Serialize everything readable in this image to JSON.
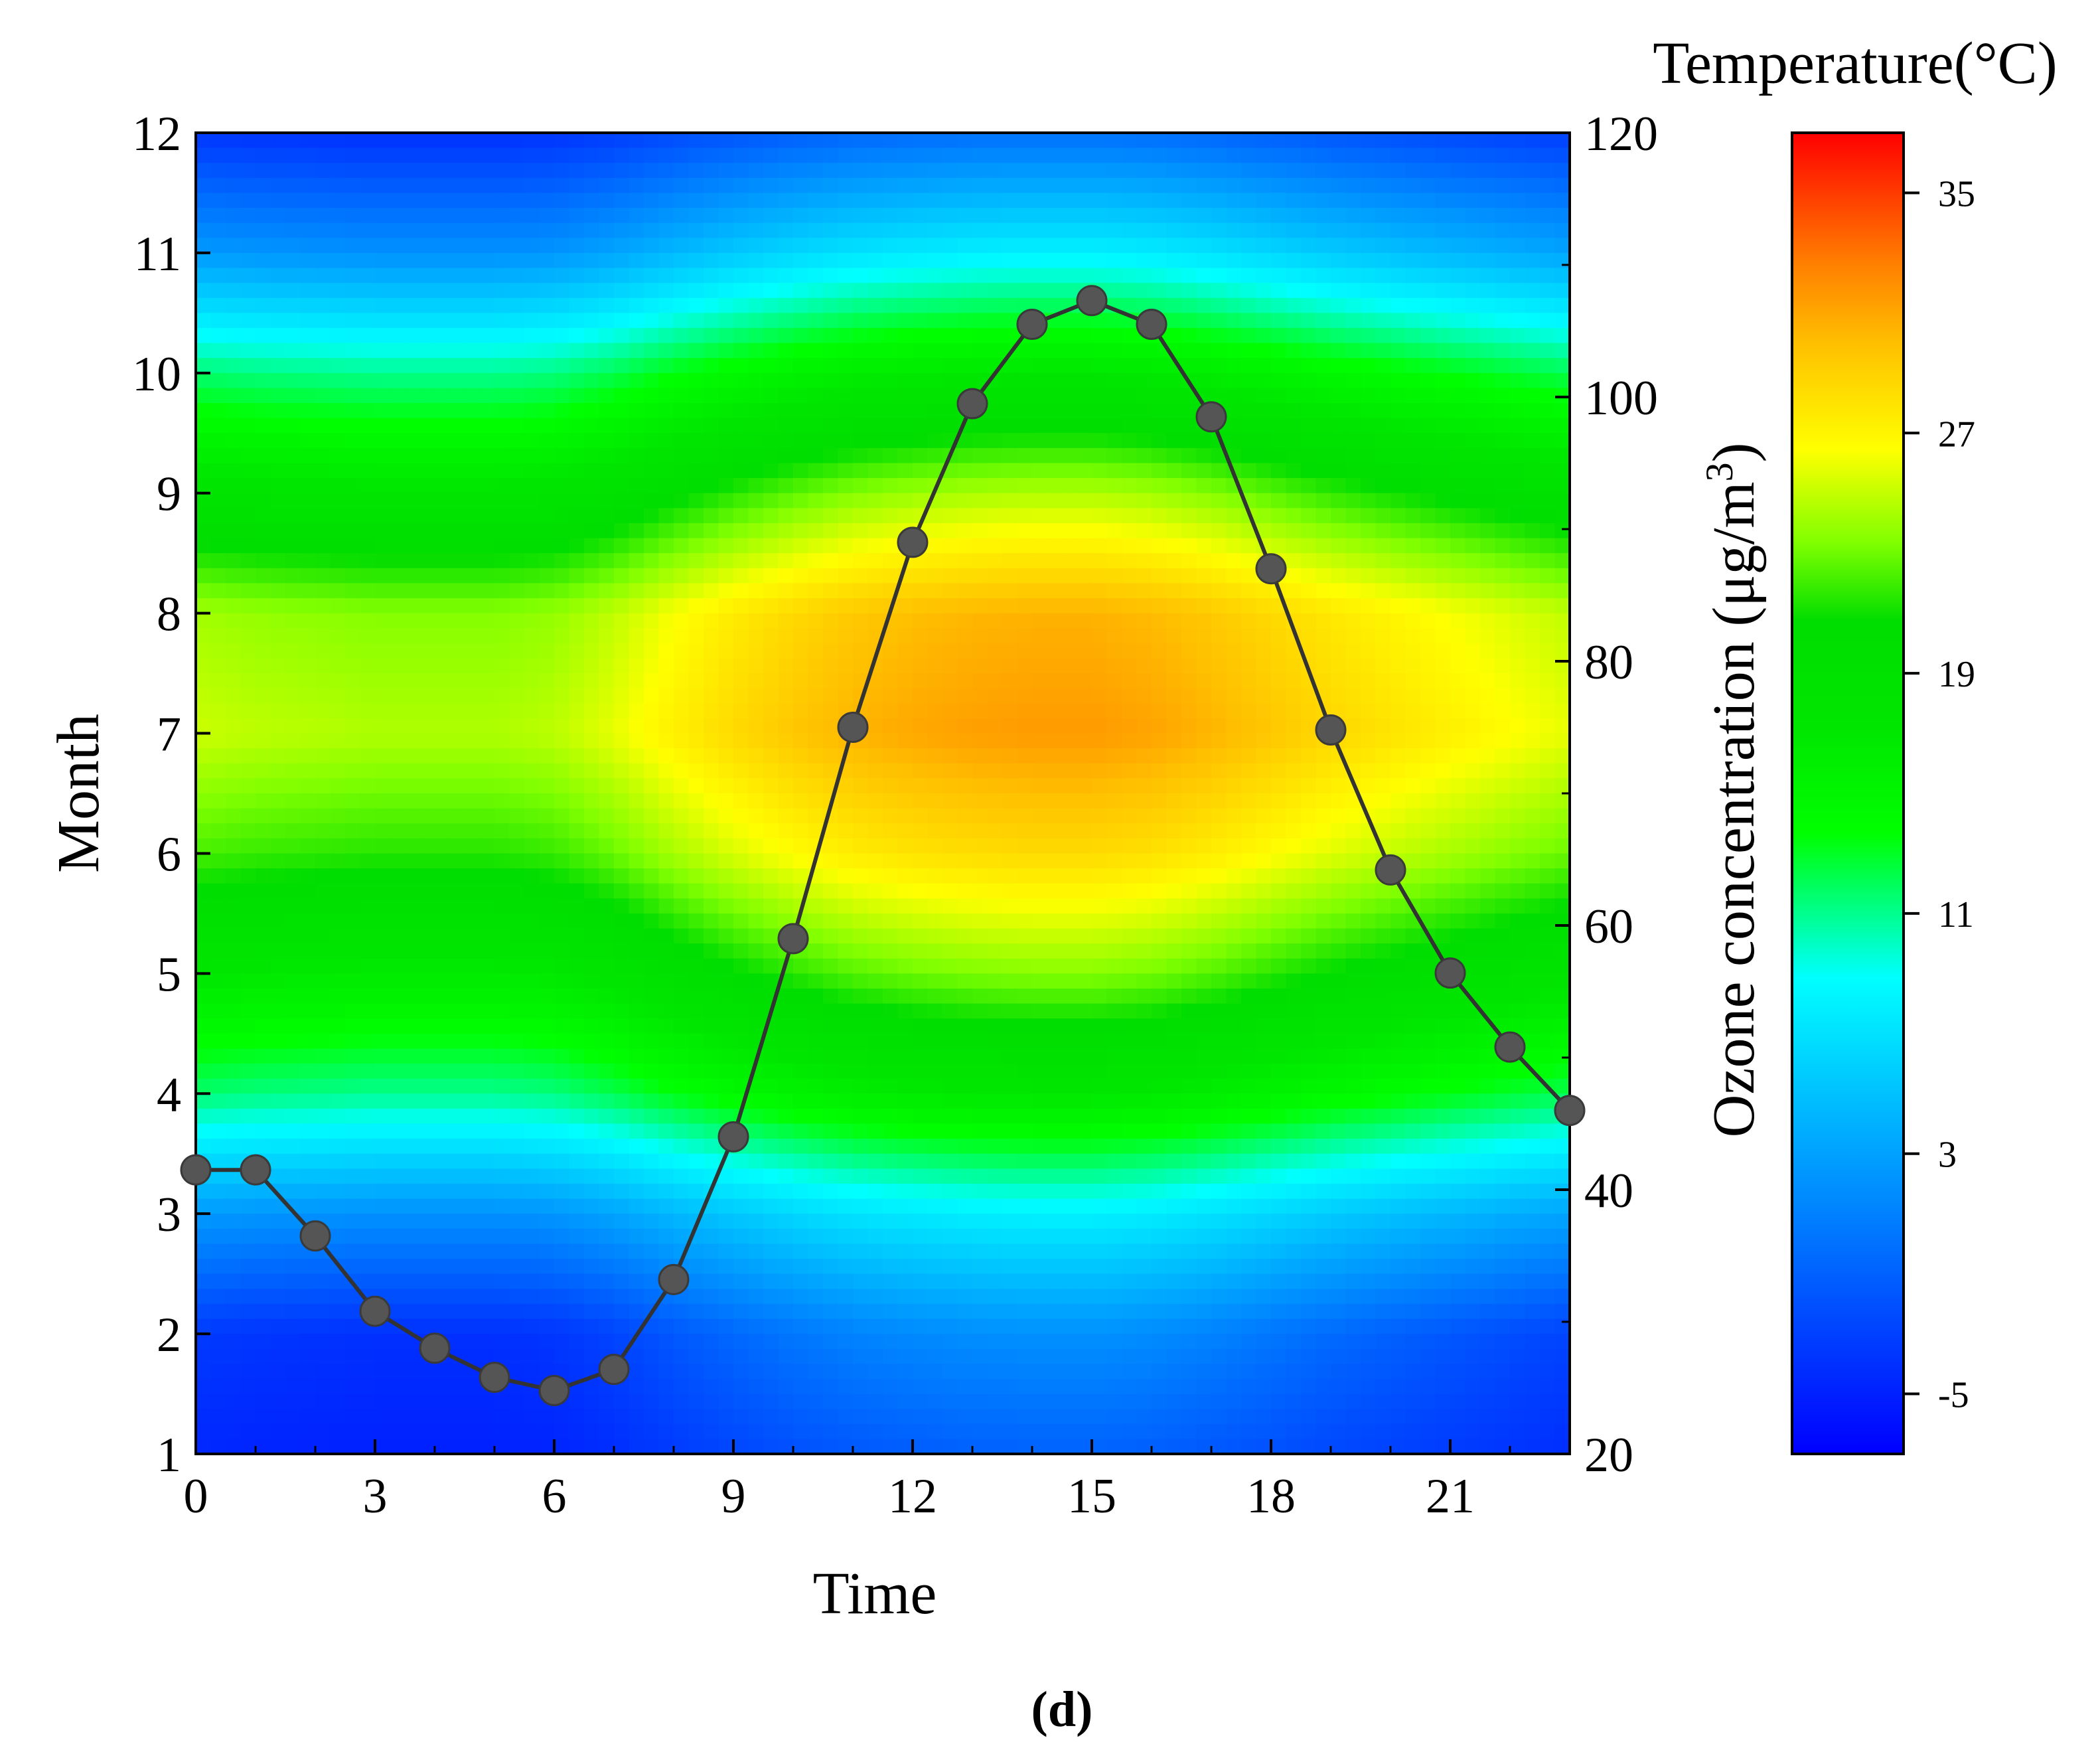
{
  "chart_data": {
    "type": "heatmap",
    "panel_label": "(d)",
    "x_axis": {
      "label": "Time",
      "range": [
        0,
        23
      ],
      "ticks": [
        0,
        3,
        6,
        9,
        12,
        15,
        18,
        21
      ],
      "tick_labels": [
        "0",
        "3",
        "6",
        "9",
        "12",
        "15",
        "18",
        "21"
      ]
    },
    "y_axis_left": {
      "label": "Month",
      "range": [
        1,
        12
      ],
      "ticks": [
        1,
        2,
        3,
        4,
        5,
        6,
        7,
        8,
        9,
        10,
        11,
        12
      ],
      "tick_labels": [
        "1",
        "2",
        "3",
        "4",
        "5",
        "6",
        "7",
        "8",
        "9",
        "10",
        "11",
        "12"
      ]
    },
    "y_axis_right": {
      "label_main": "Ozone concentration (μg/m",
      "label_sup": "3",
      "label_close": ")",
      "range": [
        20,
        120
      ],
      "ticks": [
        20,
        40,
        60,
        80,
        100,
        120
      ],
      "tick_labels": [
        "20",
        "40",
        "60",
        "80",
        "100",
        "120"
      ]
    },
    "colorbar": {
      "title": "Temperature(°C)",
      "range": [
        -7,
        37
      ],
      "ticks": [
        -5,
        3,
        11,
        19,
        27,
        35
      ],
      "tick_labels": [
        "-5",
        "3",
        "11",
        "19",
        "27",
        "35"
      ],
      "colors": [
        "#0000ff",
        "#0080ff",
        "#00ffff",
        "#00ff00",
        "#00e600",
        "#00dd00",
        "#80ff00",
        "#ffff00",
        "#ffc000",
        "#ff8000",
        "#ff4000",
        "#ff0000"
      ],
      "color_stops": [
        0.0,
        0.18,
        0.36,
        0.47,
        0.55,
        0.63,
        0.69,
        0.76,
        0.84,
        0.9,
        0.95,
        1.0
      ]
    },
    "heatmap": {
      "description": "hourly temperature by month",
      "months": [
        1,
        2,
        3,
        4,
        5,
        6,
        7,
        8,
        9,
        10,
        11,
        12
      ],
      "hours": [
        0,
        1,
        2,
        3,
        4,
        5,
        6,
        7,
        8,
        9,
        10,
        11,
        12,
        13,
        14,
        15,
        16,
        17,
        18,
        19,
        20,
        21,
        22,
        23
      ],
      "monthly_base": [
        -3,
        -1,
        5,
        14,
        20,
        25,
        28,
        27,
        21,
        14,
        5,
        -2
      ],
      "monthly_amplitude": [
        2,
        3,
        3,
        3,
        3.5,
        3.5,
        3.5,
        3.5,
        3.5,
        3,
        3,
        2
      ],
      "diurnal_shape": [
        -0.8,
        -0.9,
        -0.95,
        -1.0,
        -1.0,
        -1.0,
        -0.9,
        -0.6,
        -0.2,
        0.15,
        0.45,
        0.7,
        0.85,
        0.95,
        1.0,
        1.0,
        0.9,
        0.7,
        0.45,
        0.2,
        0.0,
        -0.2,
        -0.4,
        -0.6
      ]
    },
    "series": [
      {
        "name": "Ozone concentration",
        "axis": "right",
        "color": "#555555",
        "line_color": "#333333",
        "x": [
          0,
          1,
          2,
          3,
          4,
          5,
          6,
          7,
          8,
          9,
          10,
          11,
          12,
          13,
          14,
          15,
          16,
          17,
          18,
          19,
          20,
          21,
          22,
          23
        ],
        "values": [
          41.5,
          41.5,
          36.5,
          30.8,
          28.0,
          25.8,
          24.8,
          26.4,
          33.2,
          44.0,
          59.0,
          75.0,
          89.0,
          99.5,
          105.5,
          107.3,
          105.5,
          98.5,
          87.0,
          74.8,
          64.2,
          56.4,
          50.8,
          46.0
        ]
      }
    ]
  }
}
